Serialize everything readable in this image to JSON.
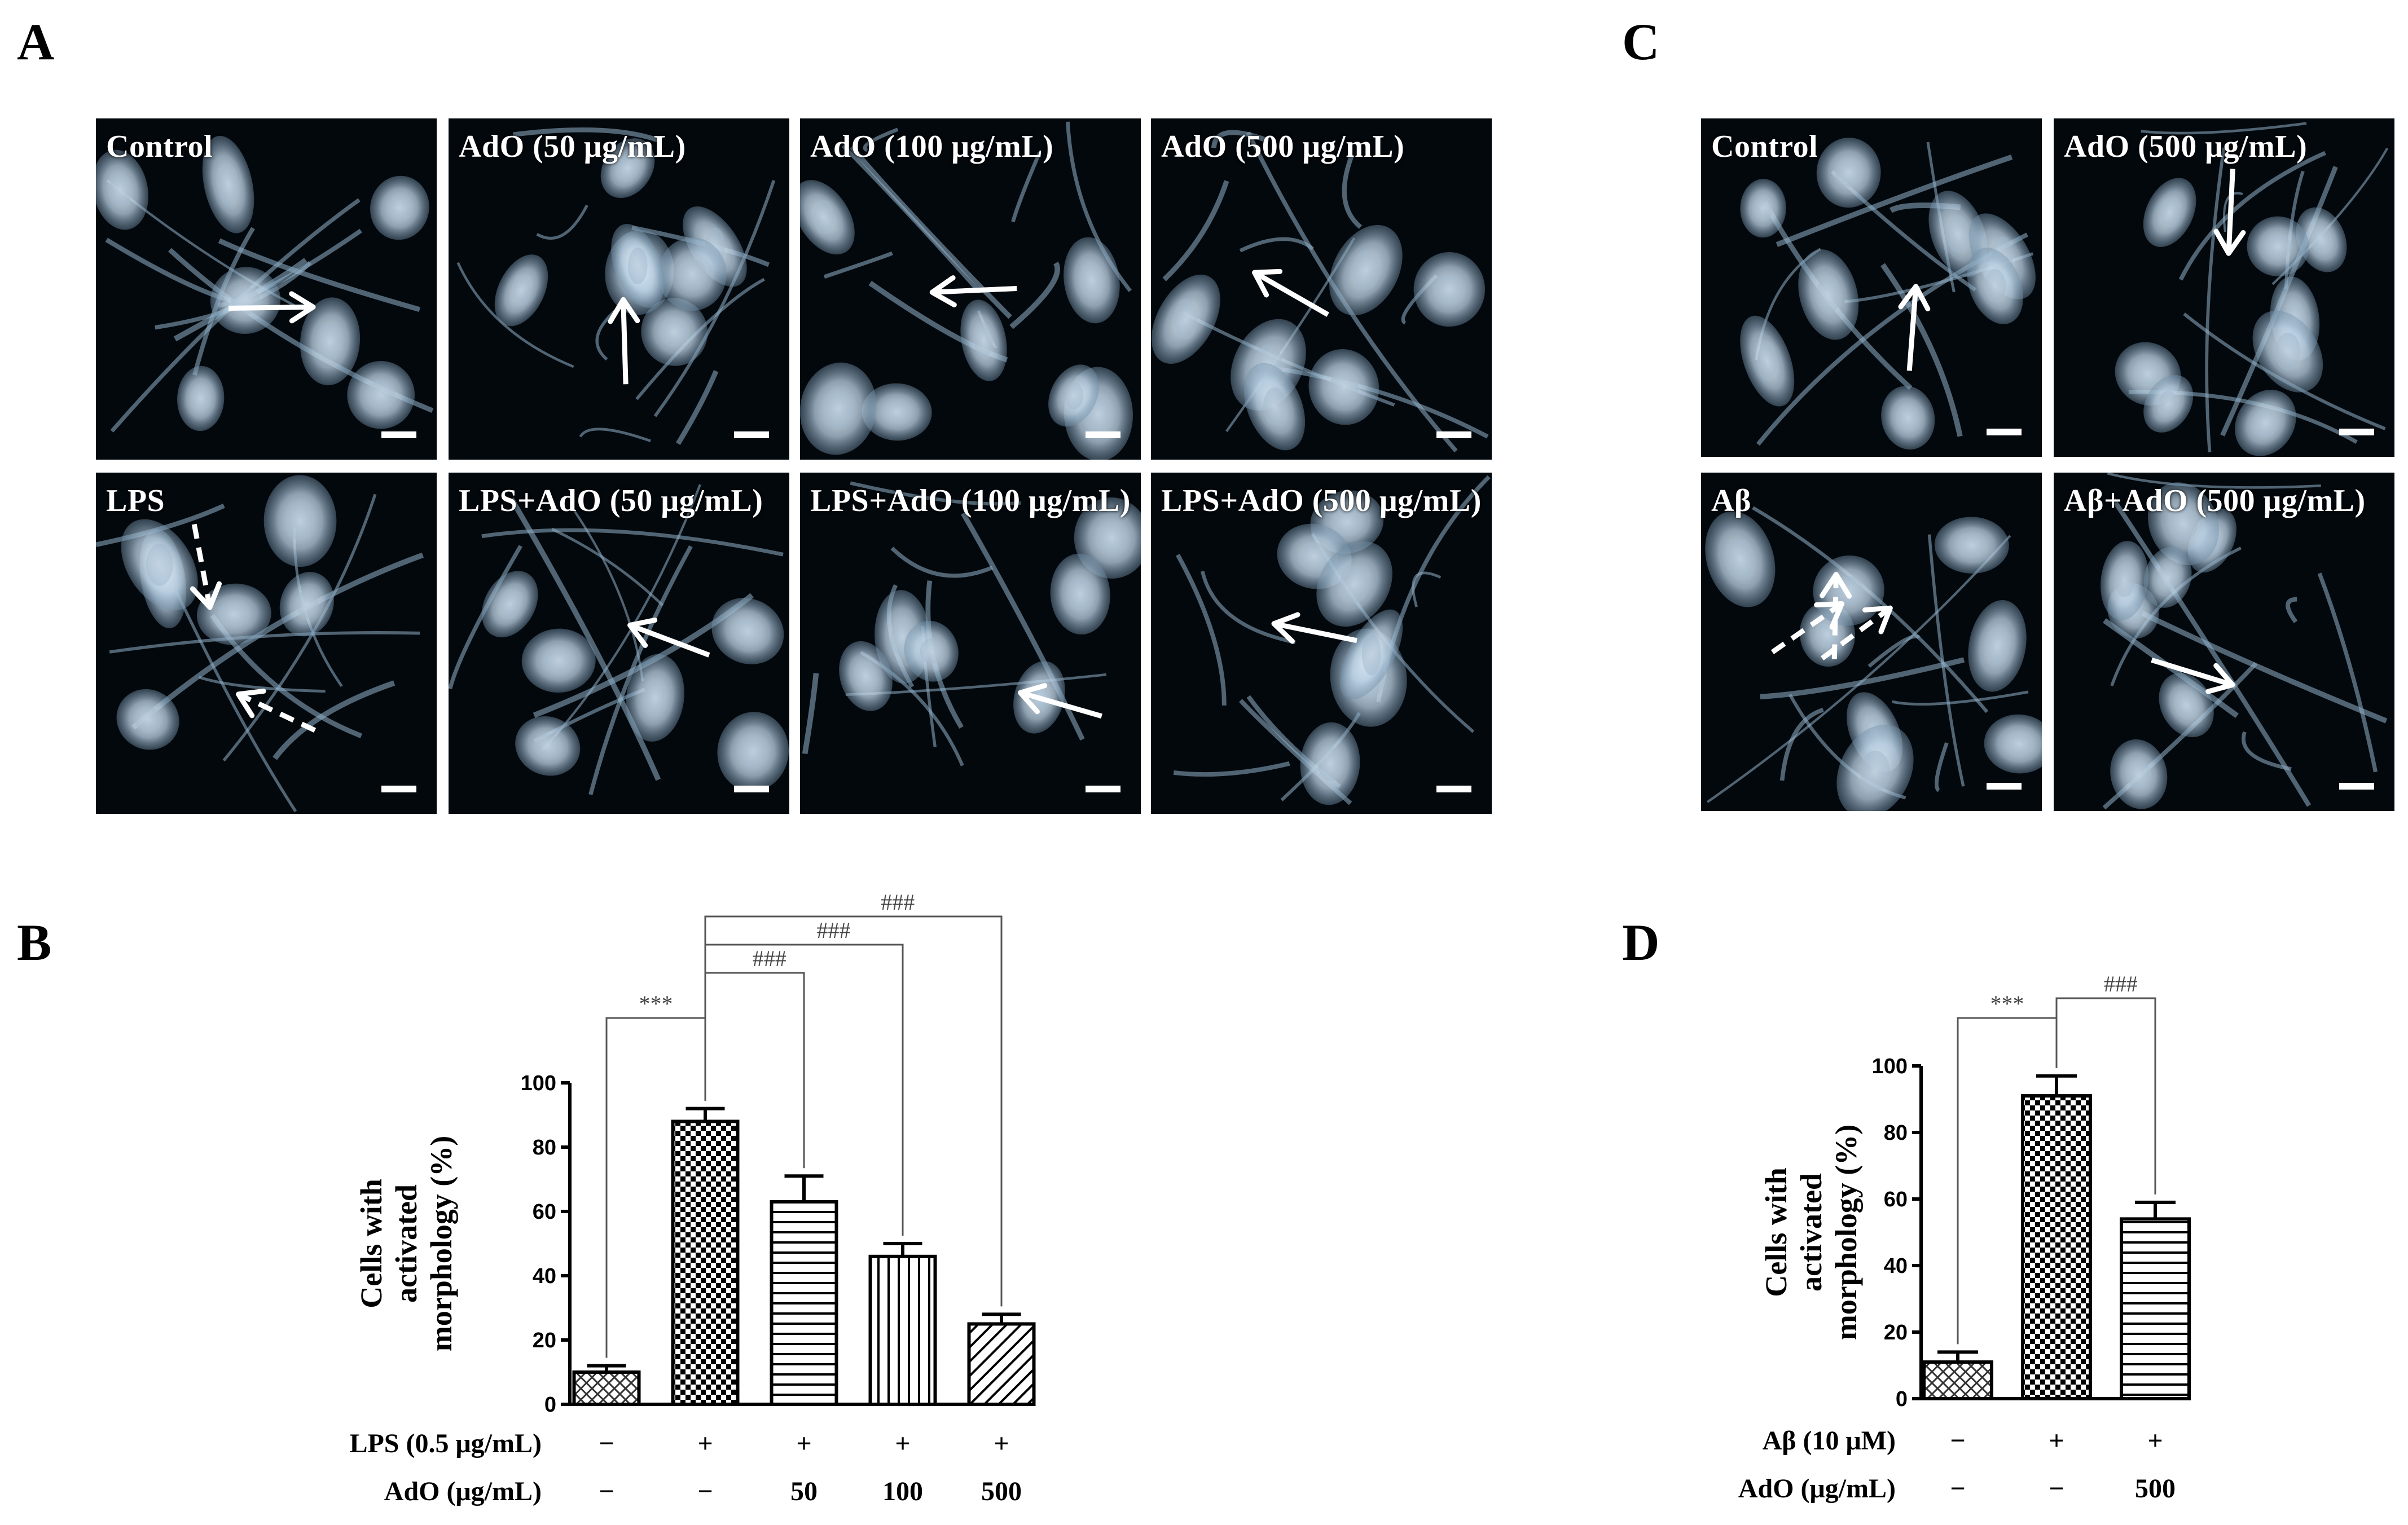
{
  "panels": {
    "A": "A",
    "B": "B",
    "C": "C",
    "D": "D"
  },
  "colors": {
    "tile_bg": "#03080d",
    "cell": "#bcd3e6",
    "arrow": "#ffffff",
    "bar_fill": "#ffffff",
    "axis": "#000000"
  },
  "panel_a": {
    "tiles": [
      {
        "label": "Control",
        "arrows": [
          {
            "style": "solid"
          }
        ]
      },
      {
        "label": "AdO (50 μg/mL)",
        "arrows": [
          {
            "style": "solid"
          }
        ]
      },
      {
        "label": "AdO (100 μg/mL)",
        "arrows": [
          {
            "style": "solid"
          }
        ]
      },
      {
        "label": "AdO (500 μg/mL)",
        "arrows": [
          {
            "style": "solid"
          }
        ]
      },
      {
        "label": "LPS",
        "arrows": [
          {
            "style": "dashed"
          },
          {
            "style": "dashed"
          }
        ]
      },
      {
        "label": "LPS+AdO (50 μg/mL)",
        "arrows": [
          {
            "style": "solid"
          }
        ]
      },
      {
        "label": "LPS+AdO (100 μg/mL)",
        "arrows": [
          {
            "style": "solid"
          }
        ]
      },
      {
        "label": "LPS+AdO (500 μg/mL)",
        "arrows": [
          {
            "style": "solid"
          }
        ]
      }
    ]
  },
  "panel_c": {
    "tiles": [
      {
        "label": "Control",
        "arrows": [
          {
            "style": "solid"
          }
        ]
      },
      {
        "label": "AdO (500 μg/mL)",
        "arrows": [
          {
            "style": "solid"
          }
        ]
      },
      {
        "label": "Aβ",
        "arrows": [
          {
            "style": "dashed"
          },
          {
            "style": "dashed"
          },
          {
            "style": "dashed"
          }
        ]
      },
      {
        "label": "Aβ+AdO (500 μg/mL)",
        "arrows": [
          {
            "style": "solid"
          }
        ]
      }
    ]
  },
  "chart_data": [
    {
      "type": "bar",
      "panel": "B",
      "ylabel": [
        "Cells with",
        "activated",
        "morphology (%)"
      ],
      "ylim": [
        0,
        100
      ],
      "yticks": [
        0,
        20,
        40,
        60,
        80,
        100
      ],
      "values": [
        10,
        88,
        63,
        46,
        25
      ],
      "errors": [
        2,
        4,
        8,
        4,
        3
      ],
      "patterns": [
        "crosshatch",
        "checker",
        "horizontal",
        "vertical",
        "diagonal"
      ],
      "condition_rows": [
        {
          "label": "LPS (0.5 μg/mL)",
          "values": [
            "−",
            "+",
            "+",
            "+",
            "+"
          ]
        },
        {
          "label": "AdO (μg/mL)",
          "values": [
            "−",
            "−",
            "50",
            "100",
            "500"
          ]
        }
      ],
      "significance": [
        {
          "from": 0,
          "to": 1,
          "label": "***"
        },
        {
          "from": 1,
          "to": 2,
          "label": "###"
        },
        {
          "from": 1,
          "to": 3,
          "label": "###"
        },
        {
          "from": 1,
          "to": 4,
          "label": "###"
        }
      ]
    },
    {
      "type": "bar",
      "panel": "D",
      "ylabel": [
        "Cells with",
        "activated",
        "morphology (%)"
      ],
      "ylim": [
        0,
        100
      ],
      "yticks": [
        0,
        20,
        40,
        60,
        80,
        100
      ],
      "values": [
        11,
        91,
        54
      ],
      "errors": [
        3,
        6,
        5
      ],
      "patterns": [
        "crosshatch",
        "checker",
        "horizontal"
      ],
      "condition_rows": [
        {
          "label": "Aβ  (10 μM)",
          "values": [
            "−",
            "+",
            "+"
          ]
        },
        {
          "label": "AdO (μg/mL)",
          "values": [
            "−",
            "−",
            "500"
          ]
        }
      ],
      "significance": [
        {
          "from": 0,
          "to": 1,
          "label": "***"
        },
        {
          "from": 1,
          "to": 2,
          "label": "###"
        }
      ]
    }
  ]
}
